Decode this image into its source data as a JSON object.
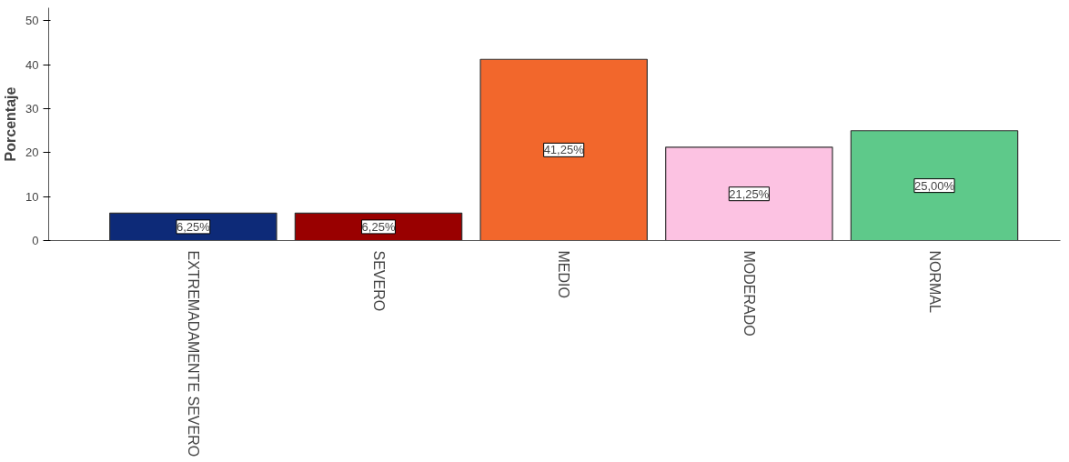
{
  "chart_data": {
    "type": "bar",
    "ylabel": "Porcentaje",
    "categories": [
      "EXTREMADAMENTE SEVERO",
      "SEVERO",
      "MEDIO",
      "MODERADO",
      "NORMAL"
    ],
    "values": [
      6.25,
      6.25,
      41.25,
      21.25,
      25.0
    ],
    "colors": [
      "#0d2a78",
      "#990000",
      "#f2672c",
      "#fcc2e2",
      "#5ec98a"
    ],
    "value_labels": [
      "6,25%",
      "6,25%",
      "41,25%",
      "21,25%",
      "25,00%"
    ],
    "ylim": [
      0,
      53
    ],
    "yticks": [
      0,
      10,
      20,
      30,
      40,
      50
    ],
    "grid": false
  }
}
